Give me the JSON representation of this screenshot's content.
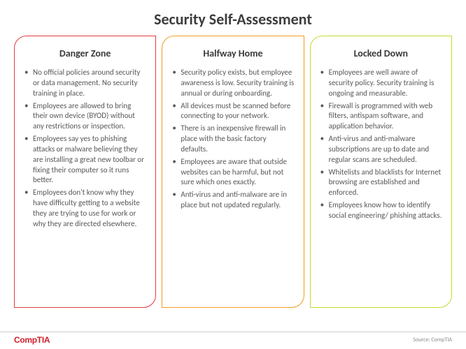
{
  "title": "Security Self-Assessment",
  "columns": [
    {
      "heading": "Danger Zone",
      "border_color": "#e03a3e",
      "bullets": [
        "No official policies around security or data management. No security training in place.",
        "Employees are allowed to bring their own device (BYOD) without any restrictions or inspection.",
        "Employees say yes to phishing attacks or malware believing they are installing a great new toolbar or fixing their computer so it runs better.",
        "Employees don't know why they have difficulty getting to a website they are trying to use for work or why they are directed elsewhere."
      ]
    },
    {
      "heading": "Halfway Home",
      "border_color": "#f39c1f",
      "bullets": [
        "Security policy exists, but employee awareness is low. Security training is annual or during onboarding.",
        "All devices must be scanned before connecting to your network.",
        "There is an inexpensive firewall in place with the basic factory defaults.",
        "Employees are aware that outside websites can be harmful, but not sure which ones exactly.",
        "Anti-virus and anti-malware are in place but not updated regularly."
      ]
    },
    {
      "heading": "Locked Down",
      "border_color": "#c5d92c",
      "bullets": [
        "Employees are well aware of security policy. Security training is ongoing and measurable.",
        "Firewall is programmed with web filters, antispam software, and application behavior.",
        "Anti-virus and anti-malware subscriptions are up to date and regular scans are scheduled.",
        "Whitelists and blacklists for Internet browsing are established and enforced.",
        "Employees know how to identify social engineering/ phishing attacks."
      ]
    }
  ],
  "logo_text": "CompTIA",
  "source_text": "Source: CompTIA"
}
